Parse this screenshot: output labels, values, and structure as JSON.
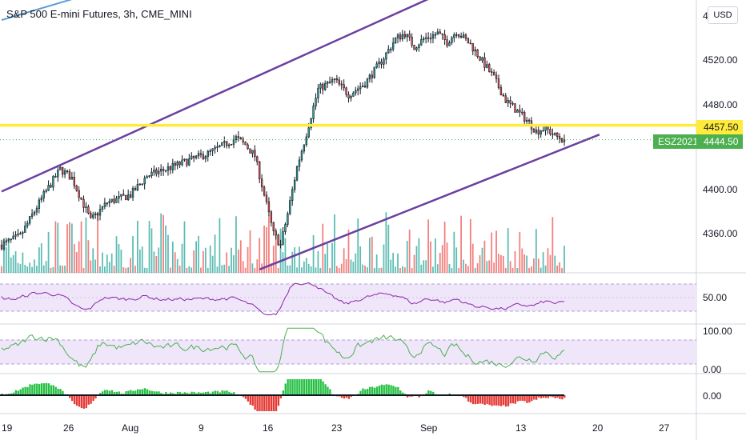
{
  "header": {
    "title": "S&P 500 E-mini Futures, 3h, CME_MINI",
    "currency": "USD",
    "top_price_partial": "4"
  },
  "colors": {
    "candle_up": "#26a69a",
    "candle_down": "#ef5350",
    "candle_body": "#131722",
    "trendline": "#6b3fa0",
    "horizontal_line": "#ffeb3b",
    "old_trendline": "#5b9bd5",
    "rsi_line": "#8e24aa",
    "stoch_line": "#4caf50",
    "band_fill": "#efe6fa",
    "last_price_tag": "#4caf50"
  },
  "chart_data": {
    "type": "candlestick",
    "symbol": "ESZ2021",
    "interval": "3h",
    "exchange": "CME_MINI",
    "x_tick_labels": [
      "19",
      "26",
      "Aug",
      "9",
      "16",
      "23",
      "Sep",
      "13",
      "20",
      "27"
    ],
    "main_pane": {
      "y_tick_labels": [
        "4520.00",
        "4480.00",
        "4400.00",
        "4360.00"
      ],
      "ylim": [
        4325,
        4570
      ],
      "horizontal_line": {
        "value": 4457.5,
        "label": "4457.50"
      },
      "last_price": {
        "value": 4444.5,
        "label": "4444.50",
        "symbol_label": "ESZ2021"
      },
      "trendlines": [
        {
          "name": "channel-upper",
          "from": {
            "bar": 0,
            "price": 4398
          },
          "to": {
            "bar": 200,
            "price": 4588
          }
        },
        {
          "name": "channel-lower",
          "from": {
            "bar": 110,
            "price": 4328
          },
          "to": {
            "bar": 250,
            "price": 4445
          }
        },
        {
          "name": "old-trend",
          "from": {
            "bar": 0,
            "price": 4552
          },
          "to": {
            "bar": 61,
            "price": 4590
          }
        }
      ],
      "price_path": [
        [
          0,
          4350
        ],
        [
          8,
          4358
        ],
        [
          18,
          4395
        ],
        [
          25,
          4418
        ],
        [
          30,
          4410
        ],
        [
          38,
          4372
        ],
        [
          45,
          4388
        ],
        [
          55,
          4395
        ],
        [
          62,
          4412
        ],
        [
          70,
          4418
        ],
        [
          80,
          4426
        ],
        [
          88,
          4432
        ],
        [
          95,
          4440
        ],
        [
          100,
          4446
        ],
        [
          104,
          4440
        ],
        [
          108,
          4430
        ],
        [
          112,
          4395
        ],
        [
          116,
          4360
        ],
        [
          119,
          4350
        ],
        [
          122,
          4378
        ],
        [
          126,
          4420
        ],
        [
          130,
          4450
        ],
        [
          135,
          4490
        ],
        [
          142,
          4498
        ],
        [
          148,
          4485
        ],
        [
          155,
          4495
        ],
        [
          162,
          4515
        ],
        [
          168,
          4535
        ],
        [
          172,
          4540
        ],
        [
          176,
          4528
        ],
        [
          180,
          4535
        ],
        [
          186,
          4540
        ],
        [
          190,
          4532
        ],
        [
          194,
          4542
        ],
        [
          200,
          4530
        ],
        [
          205,
          4515
        ],
        [
          210,
          4500
        ],
        [
          215,
          4480
        ],
        [
          220,
          4470
        ],
        [
          225,
          4460
        ],
        [
          228,
          4452
        ],
        [
          232,
          4455
        ],
        [
          236,
          4448
        ],
        [
          240,
          4444.5
        ]
      ]
    },
    "rsi_pane": {
      "y_tick_labels": [
        "50.00"
      ],
      "ylim": [
        0,
        100
      ],
      "band": [
        30,
        70
      ]
    },
    "stoch_pane": {
      "y_tick_labels": [
        "100.00",
        "0.00"
      ],
      "ylim": [
        0,
        100
      ],
      "band": [
        20,
        80
      ]
    },
    "histogram_pane": {
      "y_tick_labels": [
        "0.00"
      ]
    }
  }
}
